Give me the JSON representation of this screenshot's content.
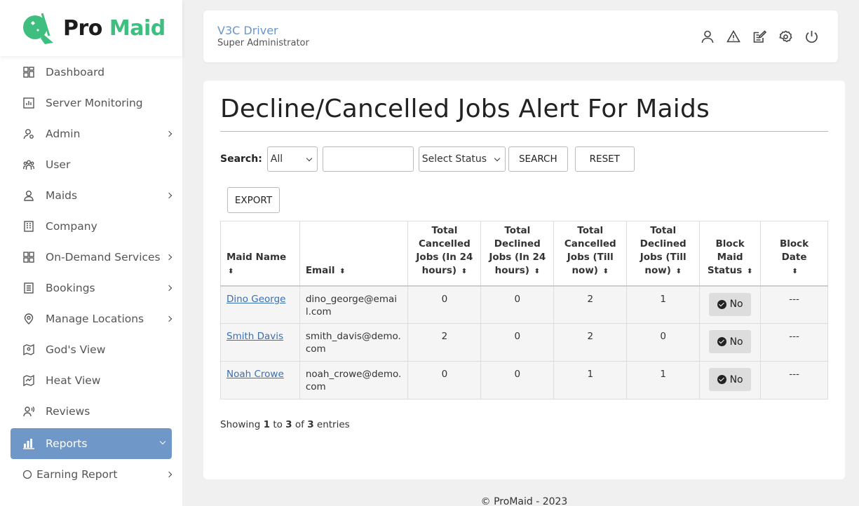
{
  "brand": {
    "pro": "Pro",
    "maid": "Maid"
  },
  "sidebar": {
    "items": [
      {
        "label": "Dashboard",
        "icon": "dashboard-icon",
        "has_submenu": false
      },
      {
        "label": "Server Monitoring",
        "icon": "chart-icon",
        "has_submenu": false
      },
      {
        "label": "Admin",
        "icon": "user-gear-icon",
        "has_submenu": true
      },
      {
        "label": "User",
        "icon": "users-icon",
        "has_submenu": false
      },
      {
        "label": "Maids",
        "icon": "user-icon",
        "has_submenu": true
      },
      {
        "label": "Company",
        "icon": "building-icon",
        "has_submenu": false
      },
      {
        "label": "On-Demand Services",
        "icon": "grid-icon",
        "has_submenu": true
      },
      {
        "label": "Bookings",
        "icon": "document-icon",
        "has_submenu": true
      },
      {
        "label": "Manage Locations",
        "icon": "location-icon",
        "has_submenu": true
      },
      {
        "label": "God's View",
        "icon": "map-person-icon",
        "has_submenu": false
      },
      {
        "label": "Heat View",
        "icon": "map-icon",
        "has_submenu": false
      },
      {
        "label": "Reviews",
        "icon": "review-icon",
        "has_submenu": false
      },
      {
        "label": "Reports",
        "icon": "bar-chart-icon",
        "has_submenu": true,
        "active": true
      },
      {
        "label": "Earning Report",
        "icon": "circle-icon",
        "has_submenu": true
      }
    ]
  },
  "header": {
    "user_name": "V3C Driver",
    "user_role": "Super Administrator",
    "icons": [
      "profile-icon",
      "alert-icon",
      "edit-icon",
      "settings-icon",
      "power-icon"
    ]
  },
  "page": {
    "title": "Decline/Cancelled Jobs Alert For Maids",
    "search_label": "Search:",
    "search_field_select": "All",
    "search_input_value": "",
    "status_select": "Select Status",
    "search_button": "SEARCH",
    "reset_button": "RESET",
    "export_button": "EXPORT"
  },
  "table": {
    "columns": [
      "Maid Name",
      "Email",
      "Total Cancelled Jobs (In 24 hours)",
      "Total Declined Jobs (In 24 hours)",
      "Total Cancelled Jobs (Till now)",
      "Total Declined Jobs (Till now)",
      "Block Maid Status",
      "Block Date"
    ],
    "rows": [
      {
        "name": "Dino George",
        "email": "dino_george@email.com",
        "c24": "0",
        "d24": "0",
        "ctotal": "2",
        "dtotal": "1",
        "status": "No",
        "date": "---"
      },
      {
        "name": "Smith Davis",
        "email": "smith_davis@demo.com",
        "c24": "2",
        "d24": "0",
        "ctotal": "2",
        "dtotal": "0",
        "status": "No",
        "date": "---"
      },
      {
        "name": "Noah Crowe",
        "email": "noah_crowe@demo.com",
        "c24": "0",
        "d24": "0",
        "ctotal": "1",
        "dtotal": "1",
        "status": "No",
        "date": "---"
      }
    ]
  },
  "pagination": {
    "prefix": "Showing",
    "from": "1",
    "to_word": "to",
    "to": "3",
    "of_word": "of",
    "total": "3",
    "suffix": "entries"
  },
  "footer": "© ProMaid - 2023",
  "colors": {
    "accent": "#6f98c9",
    "brand_green": "#3fbf7f",
    "link": "#3a6fb0"
  }
}
